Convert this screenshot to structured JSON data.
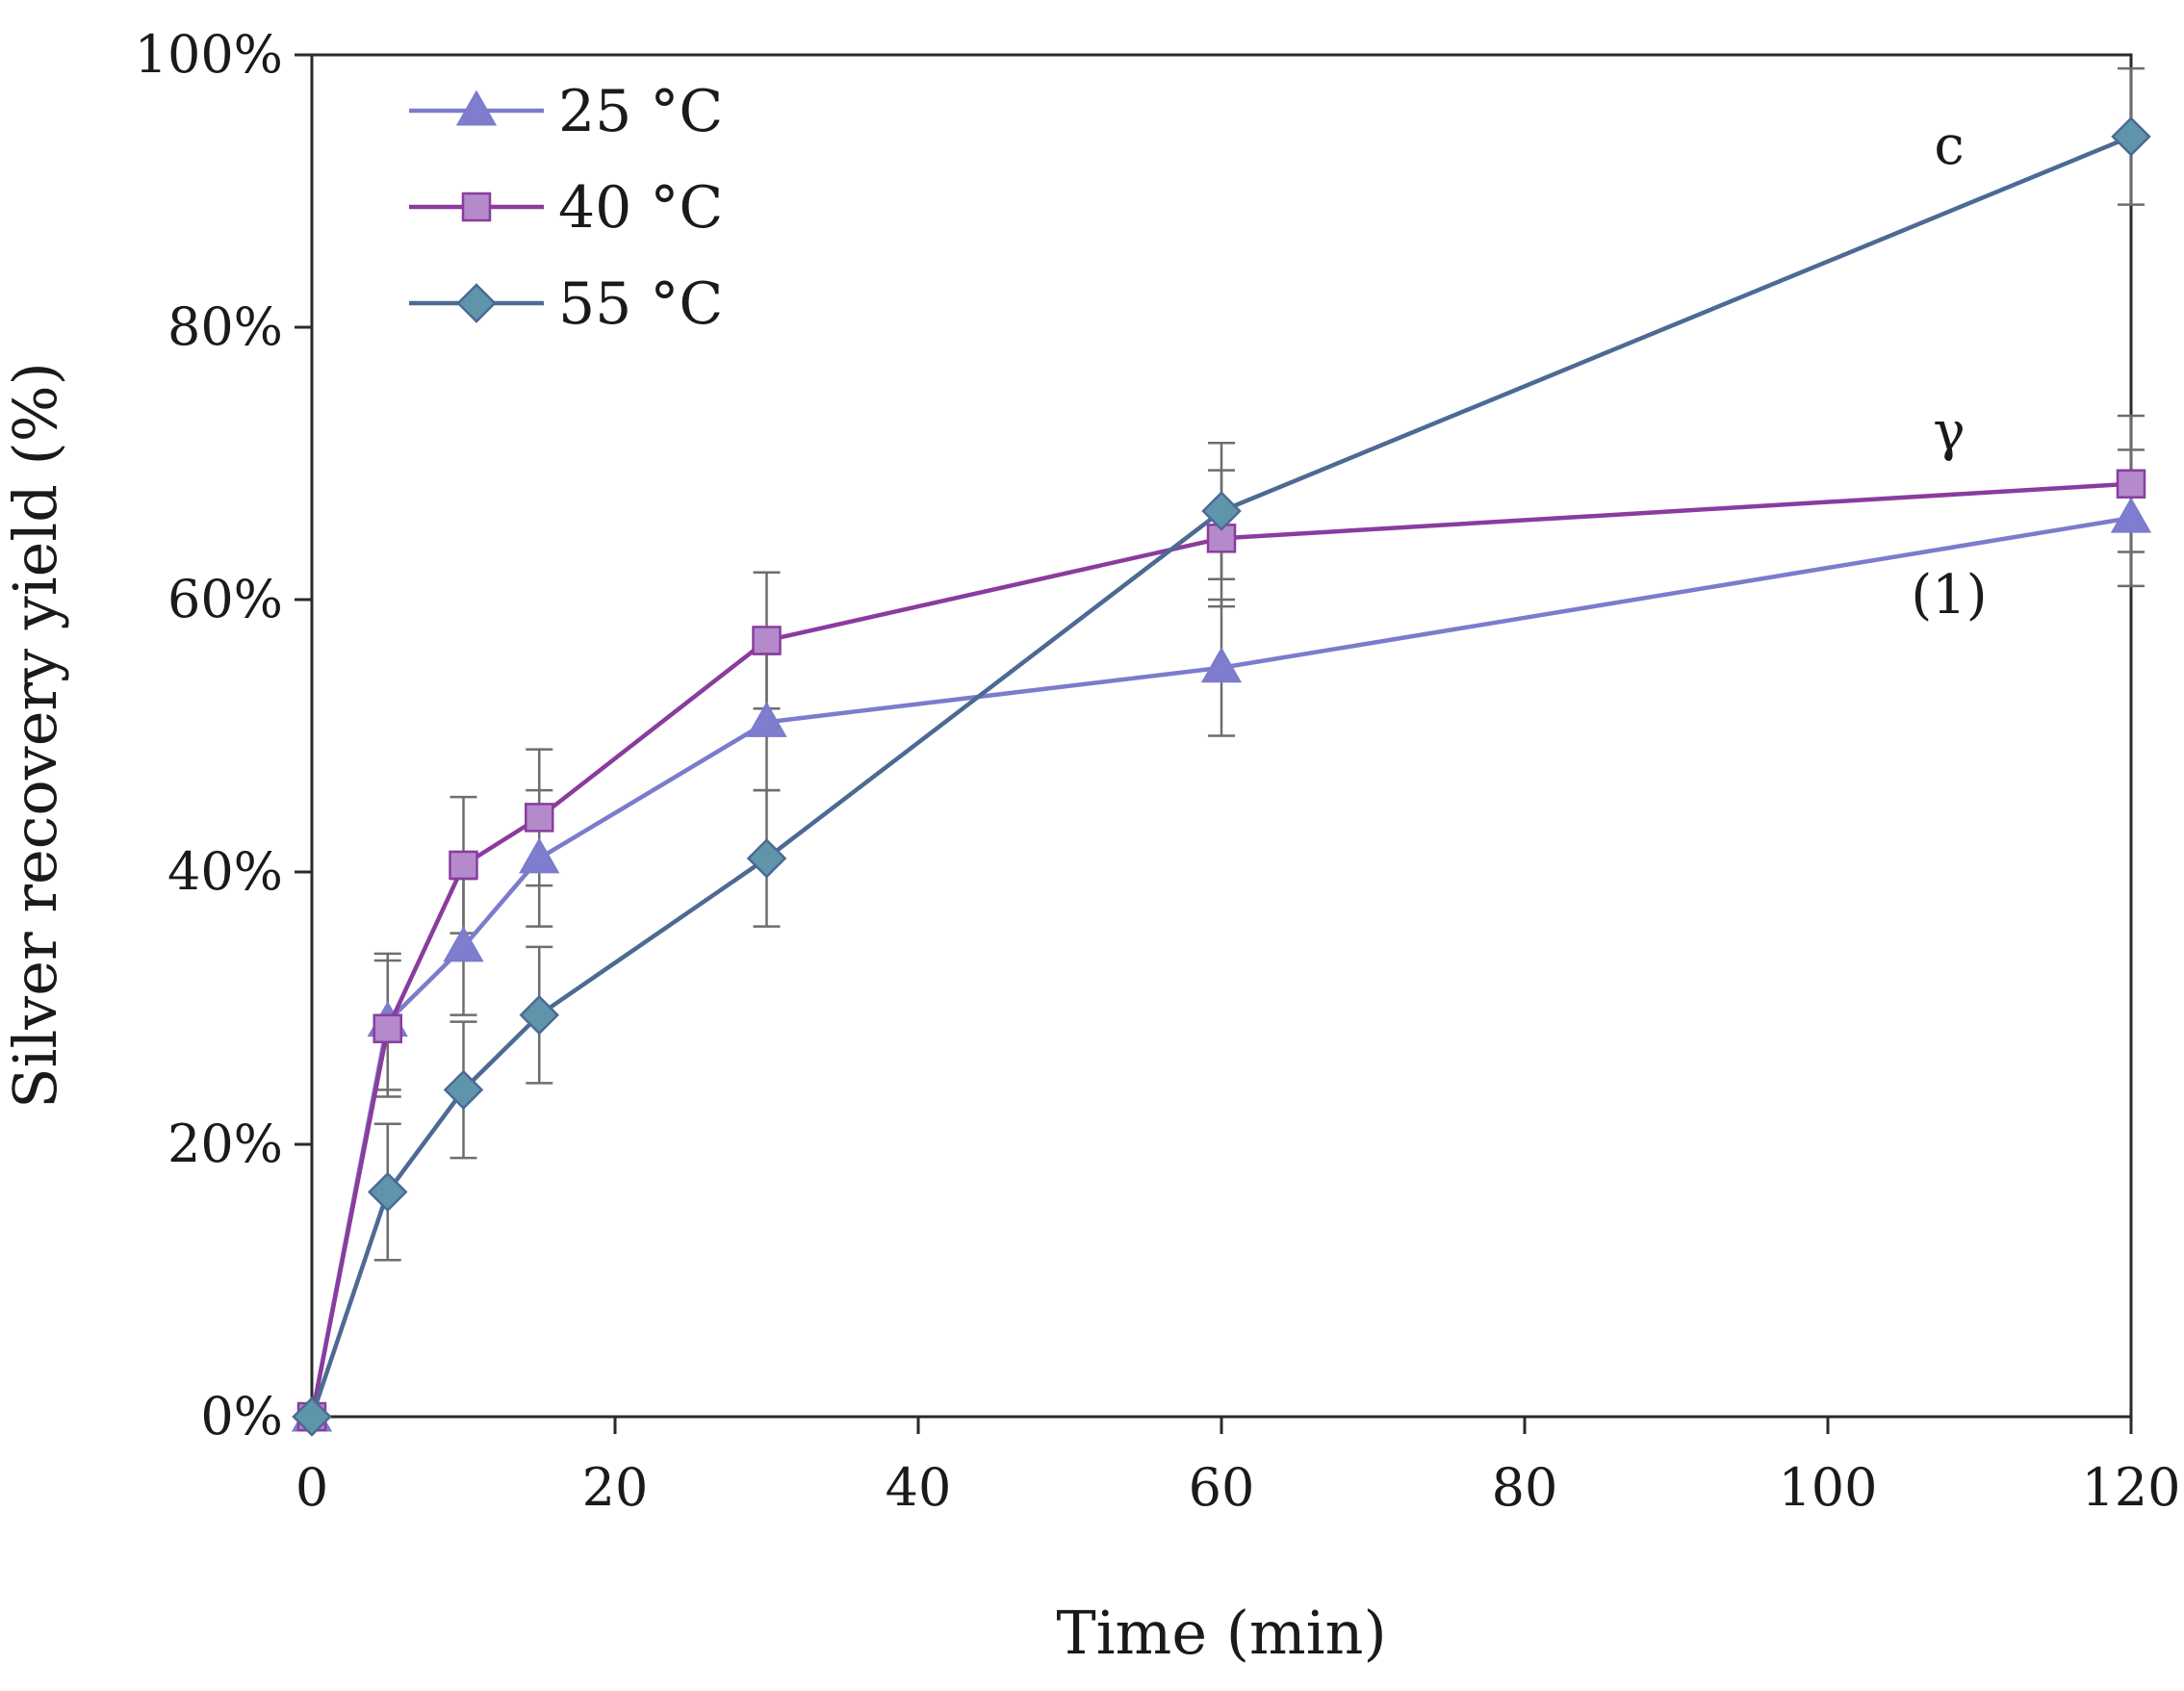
{
  "chart_data": {
    "type": "line",
    "title": "",
    "xlabel": "Time (min)",
    "ylabel": "Silver recovery yield (%)",
    "xlim": [
      0,
      120
    ],
    "ylim": [
      0,
      100
    ],
    "x_ticks": [
      0,
      20,
      40,
      60,
      80,
      100,
      120
    ],
    "y_ticks": [
      0,
      20,
      40,
      60,
      80,
      100
    ],
    "x_tick_labels": [
      "0",
      "20",
      "40",
      "60",
      "80",
      "100",
      "120"
    ],
    "y_tick_labels": [
      "0%",
      "20%",
      "40%",
      "60%",
      "80%",
      "100%"
    ],
    "grid": false,
    "legend_position": "top-left",
    "series": [
      {
        "name": "25 °C",
        "marker": "triangle",
        "color": "#7b7ccc",
        "marker_fill": "#7f7dcf",
        "x": [
          0,
          5,
          10,
          15,
          30,
          60,
          120
        ],
        "y": [
          0,
          29,
          34.5,
          41,
          51,
          55,
          66
        ],
        "error": [
          0,
          5,
          5,
          5,
          5,
          5,
          5
        ]
      },
      {
        "name": "40 °C",
        "marker": "square",
        "color": "#8a3c9e",
        "marker_fill": "#b48acb",
        "x": [
          0,
          5,
          10,
          15,
          30,
          60,
          120
        ],
        "y": [
          0,
          28.5,
          40.5,
          44,
          57,
          64.5,
          68.5
        ],
        "error": [
          0,
          5,
          5,
          5,
          5,
          5,
          5
        ]
      },
      {
        "name": "55 °C",
        "marker": "diamond",
        "color": "#4c6a94",
        "marker_fill": "#5f95aa",
        "x": [
          0,
          5,
          10,
          15,
          30,
          60,
          120
        ],
        "y": [
          0,
          16.5,
          24,
          29.5,
          41,
          66.5,
          94
        ],
        "error": [
          0,
          5,
          5,
          5,
          5,
          5,
          5
        ]
      }
    ],
    "annotations": [
      {
        "text": "c",
        "x": 108,
        "y": 92
      },
      {
        "text": "γ",
        "x": 108,
        "y": 71
      },
      {
        "text": "(1)",
        "x": 108,
        "y": 59
      }
    ]
  }
}
